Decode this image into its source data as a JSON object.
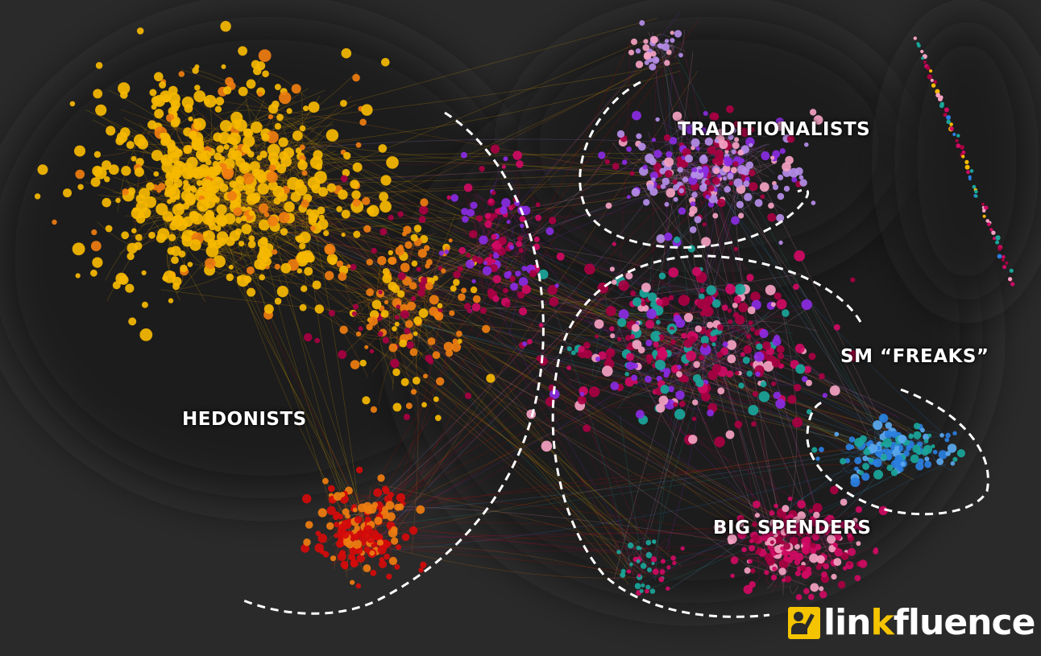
{
  "clusters": [
    {
      "label": "HEDONISTS",
      "color": "#f6b800"
    },
    {
      "label": "TRADITIONALISTS",
      "color": "#b58de8"
    },
    {
      "label": "SM “FREAKS”",
      "color": "#2a7fe0"
    },
    {
      "label": "BIG SPENDERS",
      "color": "#cf0a63"
    }
  ],
  "palette": {
    "hedonists": "#f6b800",
    "orange": "#ef7d10",
    "red": "#d40b0b",
    "crimson": "#a80042",
    "magenta": "#cf0a63",
    "traditionalists": "#b58de8",
    "pink": "#f4a2c2",
    "blue": "#2a7fe0",
    "teal": "#1aa59a",
    "violet": "#8a2be2"
  },
  "logo": {
    "brand_start": "lin",
    "brand_accent": "k",
    "brand_end": "fluence",
    "accent_color": "#f4c400"
  }
}
